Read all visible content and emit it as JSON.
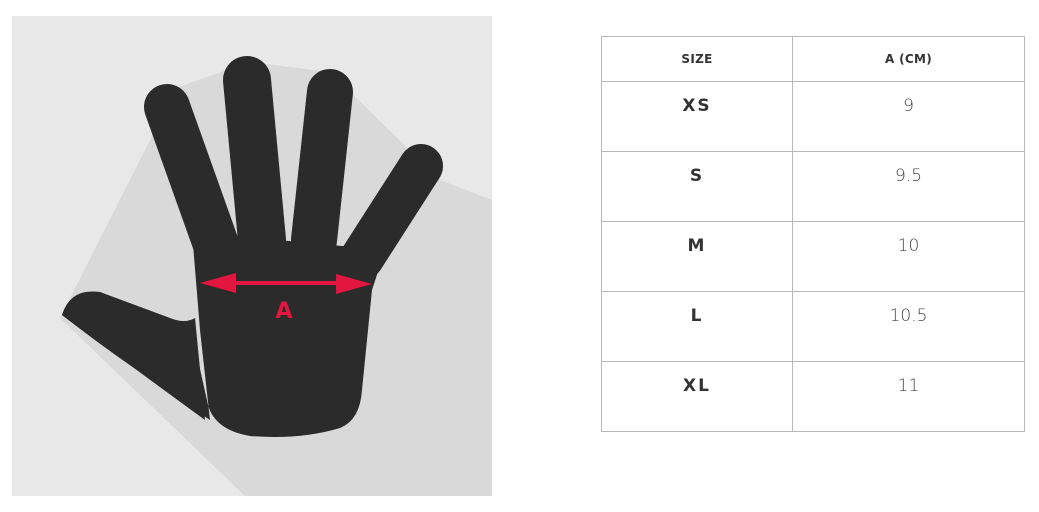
{
  "illustration": {
    "label": "A",
    "hand_color": "#2b2b2b",
    "arrow_color": "#e3163f",
    "background": "#e8e8e8",
    "shadow": "#d8d8d8"
  },
  "table": {
    "headers": [
      "SIZE",
      "A (CM)"
    ],
    "rows": [
      {
        "size": "XS",
        "a": "9"
      },
      {
        "size": "S",
        "a": "9.5"
      },
      {
        "size": "M",
        "a": "10"
      },
      {
        "size": "L",
        "a": "10.5"
      },
      {
        "size": "XL",
        "a": "11"
      }
    ]
  }
}
